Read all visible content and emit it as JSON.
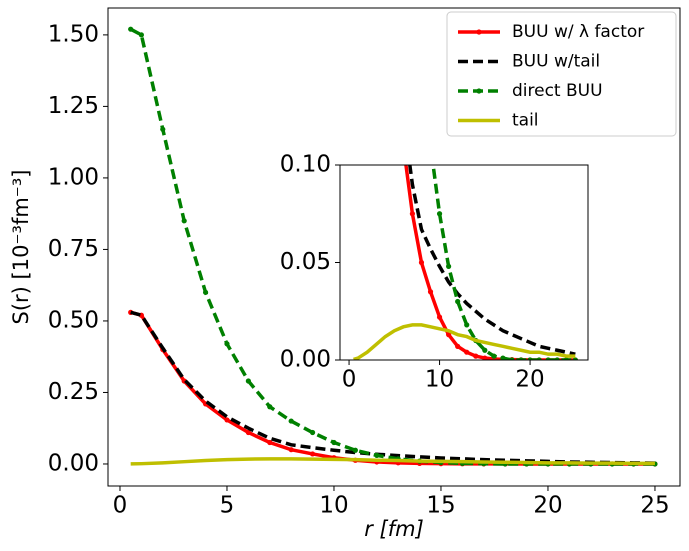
{
  "chart_data": {
    "type": "line",
    "xlabel": "r [fm]",
    "ylabel": "S(r) [10⁻³fm⁻³]",
    "x": [
      0.5,
      1,
      2,
      3,
      4,
      5,
      6,
      7,
      8,
      9,
      10,
      11,
      12,
      13,
      14,
      15,
      16,
      17,
      18,
      19,
      20,
      21,
      22,
      23,
      24,
      25
    ],
    "series": [
      {
        "name": "BUU w/ λ factor",
        "color": "#ff0000",
        "linestyle": "solid",
        "marker": true,
        "values": [
          0.53,
          0.52,
          0.4,
          0.29,
          0.21,
          0.154,
          0.11,
          0.075,
          0.05,
          0.035,
          0.022,
          0.013,
          0.007,
          0.004,
          0.002,
          0.001,
          0.0005,
          0.0003,
          0.0002,
          0.0001,
          0,
          0,
          0,
          0,
          0,
          0
        ]
      },
      {
        "name": "BUU w/tail",
        "color": "#000000",
        "linestyle": "dashed",
        "marker": false,
        "values": [
          0.53,
          0.52,
          0.405,
          0.295,
          0.22,
          0.165,
          0.125,
          0.09,
          0.067,
          0.057,
          0.048,
          0.04,
          0.034,
          0.029,
          0.025,
          0.021,
          0.018,
          0.015,
          0.013,
          0.011,
          0.009,
          0.007,
          0.006,
          0.005,
          0.004,
          0.003
        ]
      },
      {
        "name": "direct BUU",
        "color": "#008000",
        "linestyle": "dashed",
        "marker": true,
        "values": [
          1.52,
          1.5,
          1.17,
          0.85,
          0.6,
          0.42,
          0.29,
          0.2,
          0.15,
          0.11,
          0.075,
          0.048,
          0.03,
          0.018,
          0.01,
          0.005,
          0.002,
          0.001,
          0,
          0,
          0,
          0,
          0,
          0,
          0,
          0
        ]
      },
      {
        "name": "tail",
        "color": "#bfbf00",
        "linestyle": "solid",
        "marker": false,
        "values": [
          0.0003,
          0.001,
          0.004,
          0.008,
          0.012,
          0.015,
          0.017,
          0.018,
          0.018,
          0.017,
          0.016,
          0.015,
          0.013,
          0.012,
          0.01,
          0.009,
          0.008,
          0.007,
          0.006,
          0.005,
          0.004,
          0.004,
          0.003,
          0.003,
          0.002,
          0.002
        ]
      }
    ],
    "xlim": [
      -0.56,
      26.17
    ],
    "ylim": [
      -0.077,
      1.594
    ],
    "xticks": [
      0,
      5,
      10,
      15,
      20,
      25
    ],
    "yticks": [
      {
        "value": 0,
        "label": "0.00"
      },
      {
        "value": 0.25,
        "label": "0.25"
      },
      {
        "value": 0.5,
        "label": "0.50"
      },
      {
        "value": 0.75,
        "label": "0.75"
      },
      {
        "value": 1,
        "label": "1.00"
      },
      {
        "value": 1.25,
        "label": "1.25"
      },
      {
        "value": 1.5,
        "label": "1.50"
      }
    ],
    "legend": "upper right",
    "inset": {
      "xlim": [
        -1,
        26.4
      ],
      "ylim": [
        0,
        0.1
      ],
      "xticks": [
        0,
        10,
        20
      ],
      "yticks": [
        {
          "value": 0,
          "label": "0.00"
        },
        {
          "value": 0.05,
          "label": "0.05"
        },
        {
          "value": 0.1,
          "label": "0.10"
        }
      ]
    }
  }
}
